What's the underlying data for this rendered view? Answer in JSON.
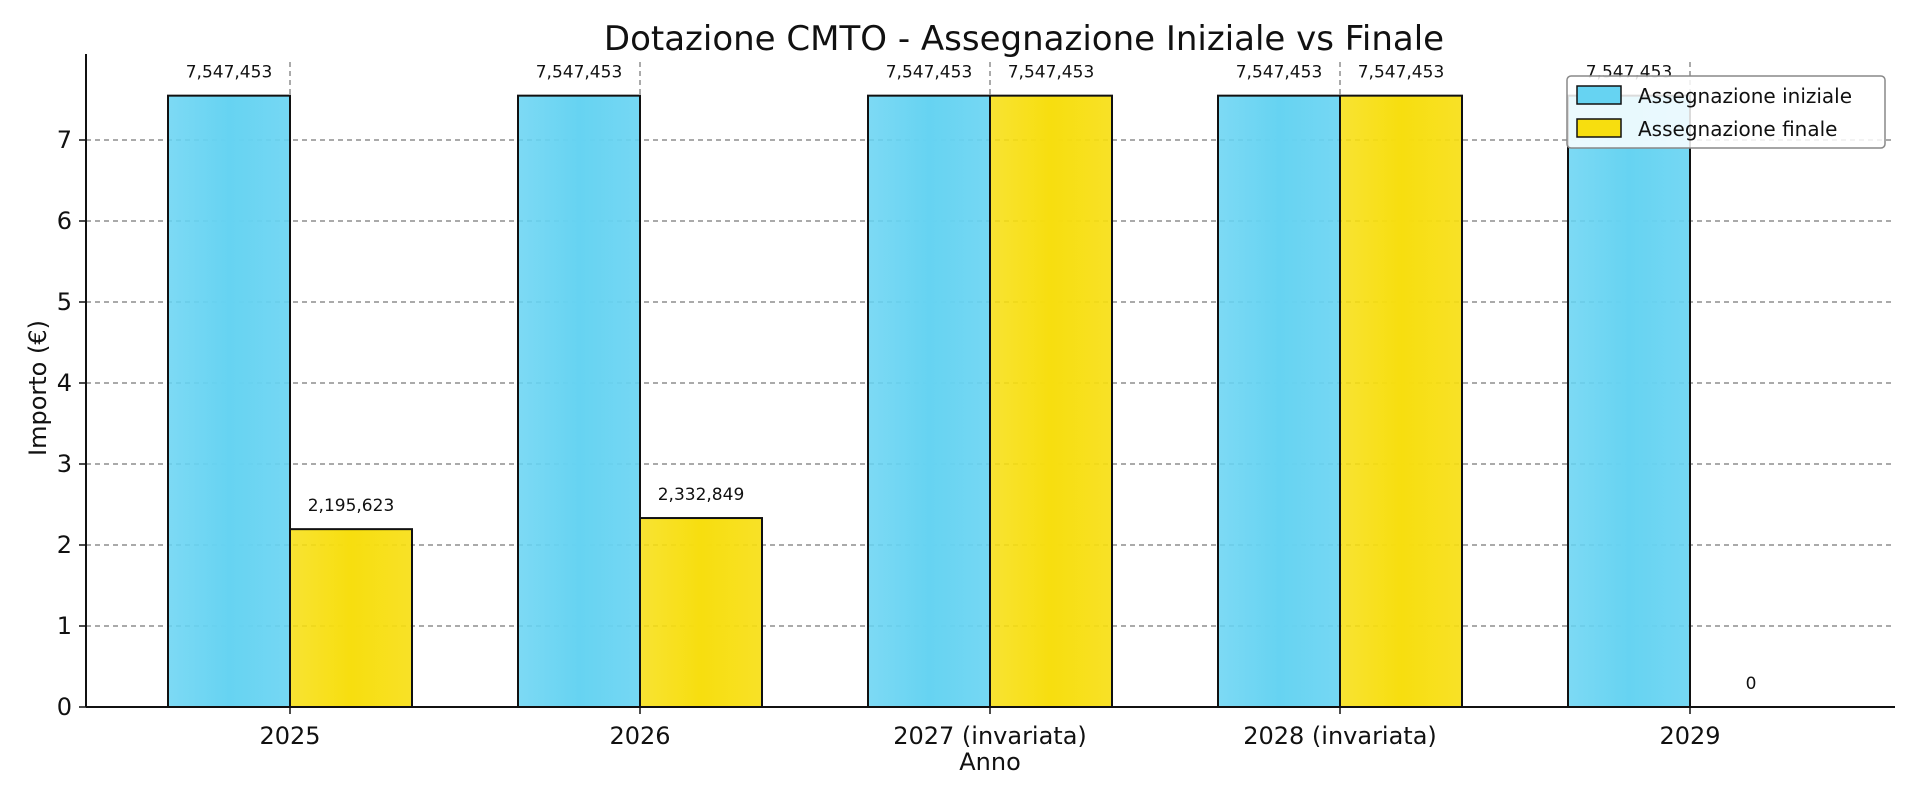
{
  "chart_data": {
    "type": "bar",
    "title": "Dotazione CMTO - Assegnazione Iniziale vs Finale",
    "xlabel": "Anno",
    "ylabel": "Importo (€)",
    "categories": [
      "2025",
      "2026",
      "2027 (invariata)",
      "2028 (invariata)",
      "2029"
    ],
    "ylim": [
      0,
      7.9
    ],
    "yticks": [
      "0",
      "1",
      "2",
      "3",
      "4",
      "5",
      "6",
      "7"
    ],
    "grid": "horizontal-dashed",
    "legend_position": "top-right",
    "series": [
      {
        "name": "Assegnazione iniziale",
        "color": "#66d3f2",
        "values": [
          7.547453,
          7.547453,
          7.547453,
          7.547453,
          7.547453
        ],
        "labels": [
          "7,547,453",
          "7,547,453",
          "7,547,453",
          "7,547,453",
          "7,547,453"
        ]
      },
      {
        "name": "Assegnazione finale",
        "color": "#f7de0f",
        "values": [
          2.195623,
          2.332849,
          7.547453,
          7.547453,
          0
        ],
        "labels": [
          "2,195,623",
          "2,332,849",
          "7,547,453",
          "7,547,453",
          "0"
        ]
      }
    ]
  }
}
